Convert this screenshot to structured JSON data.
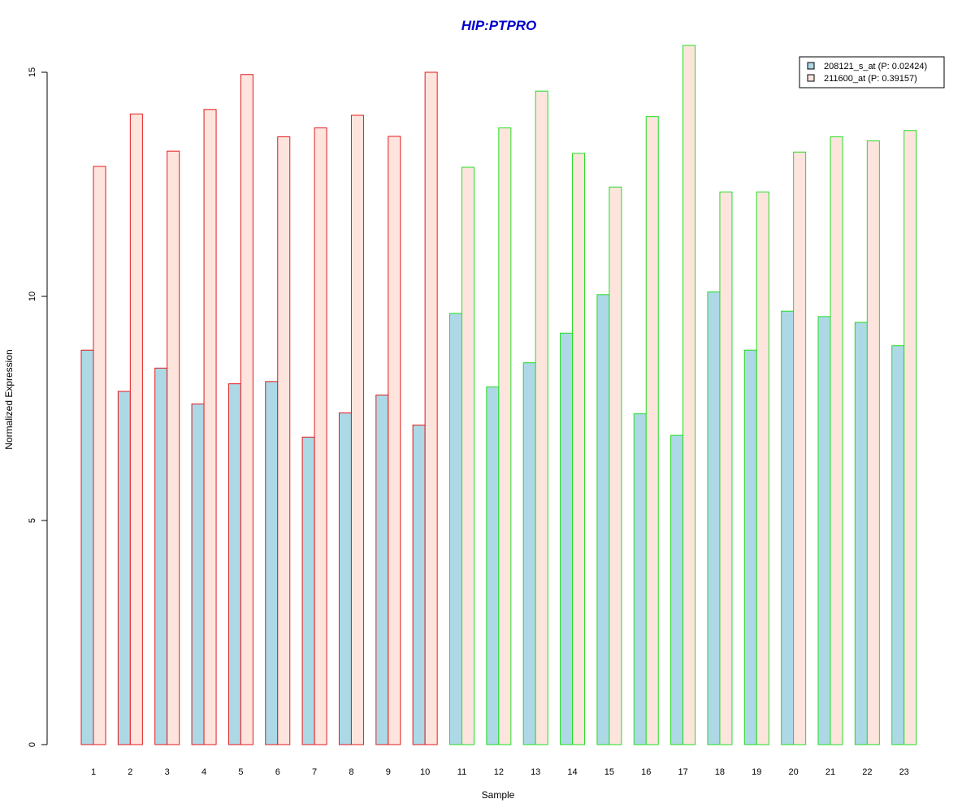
{
  "chart_data": {
    "type": "bar",
    "title": "HIP:PTPRO",
    "xlabel": "Sample",
    "ylabel": "Normalized Expression",
    "ylim": [
      0,
      15.5
    ],
    "yticks": [
      0,
      5,
      10,
      15
    ],
    "categories": [
      "1",
      "2",
      "3",
      "4",
      "5",
      "6",
      "7",
      "8",
      "9",
      "10",
      "11",
      "12",
      "13",
      "14",
      "15",
      "16",
      "17",
      "18",
      "19",
      "20",
      "21",
      "22",
      "23"
    ],
    "group_border_colors": [
      "#e31a1c",
      "#e31a1c",
      "#e31a1c",
      "#e31a1c",
      "#e31a1c",
      "#e31a1c",
      "#e31a1c",
      "#e31a1c",
      "#e31a1c",
      "#e31a1c",
      "#22dd22",
      "#22dd22",
      "#22dd22",
      "#22dd22",
      "#22dd22",
      "#22dd22",
      "#22dd22",
      "#22dd22",
      "#22dd22",
      "#22dd22",
      "#22dd22",
      "#22dd22",
      "#22dd22"
    ],
    "series": [
      {
        "name": "208121_s_at (P: 0.02424)",
        "fill": "#add8e6",
        "values": [
          8.8,
          7.88,
          8.4,
          7.6,
          8.05,
          8.1,
          6.86,
          7.4,
          7.8,
          7.13,
          9.62,
          7.98,
          8.52,
          9.18,
          10.04,
          7.38,
          6.9,
          10.1,
          8.8,
          9.67,
          9.55,
          9.42,
          8.9
        ]
      },
      {
        "name": "211600_at (P: 0.39157)",
        "fill": "#fde5de",
        "values": [
          12.9,
          14.07,
          13.24,
          14.17,
          14.95,
          13.56,
          13.76,
          14.04,
          13.57,
          15.0,
          12.88,
          13.76,
          14.58,
          13.19,
          12.44,
          14.01,
          15.6,
          12.33,
          12.33,
          13.22,
          13.56,
          13.47,
          13.7
        ]
      }
    ],
    "legend": {
      "position": "top-right"
    },
    "grid": false
  }
}
